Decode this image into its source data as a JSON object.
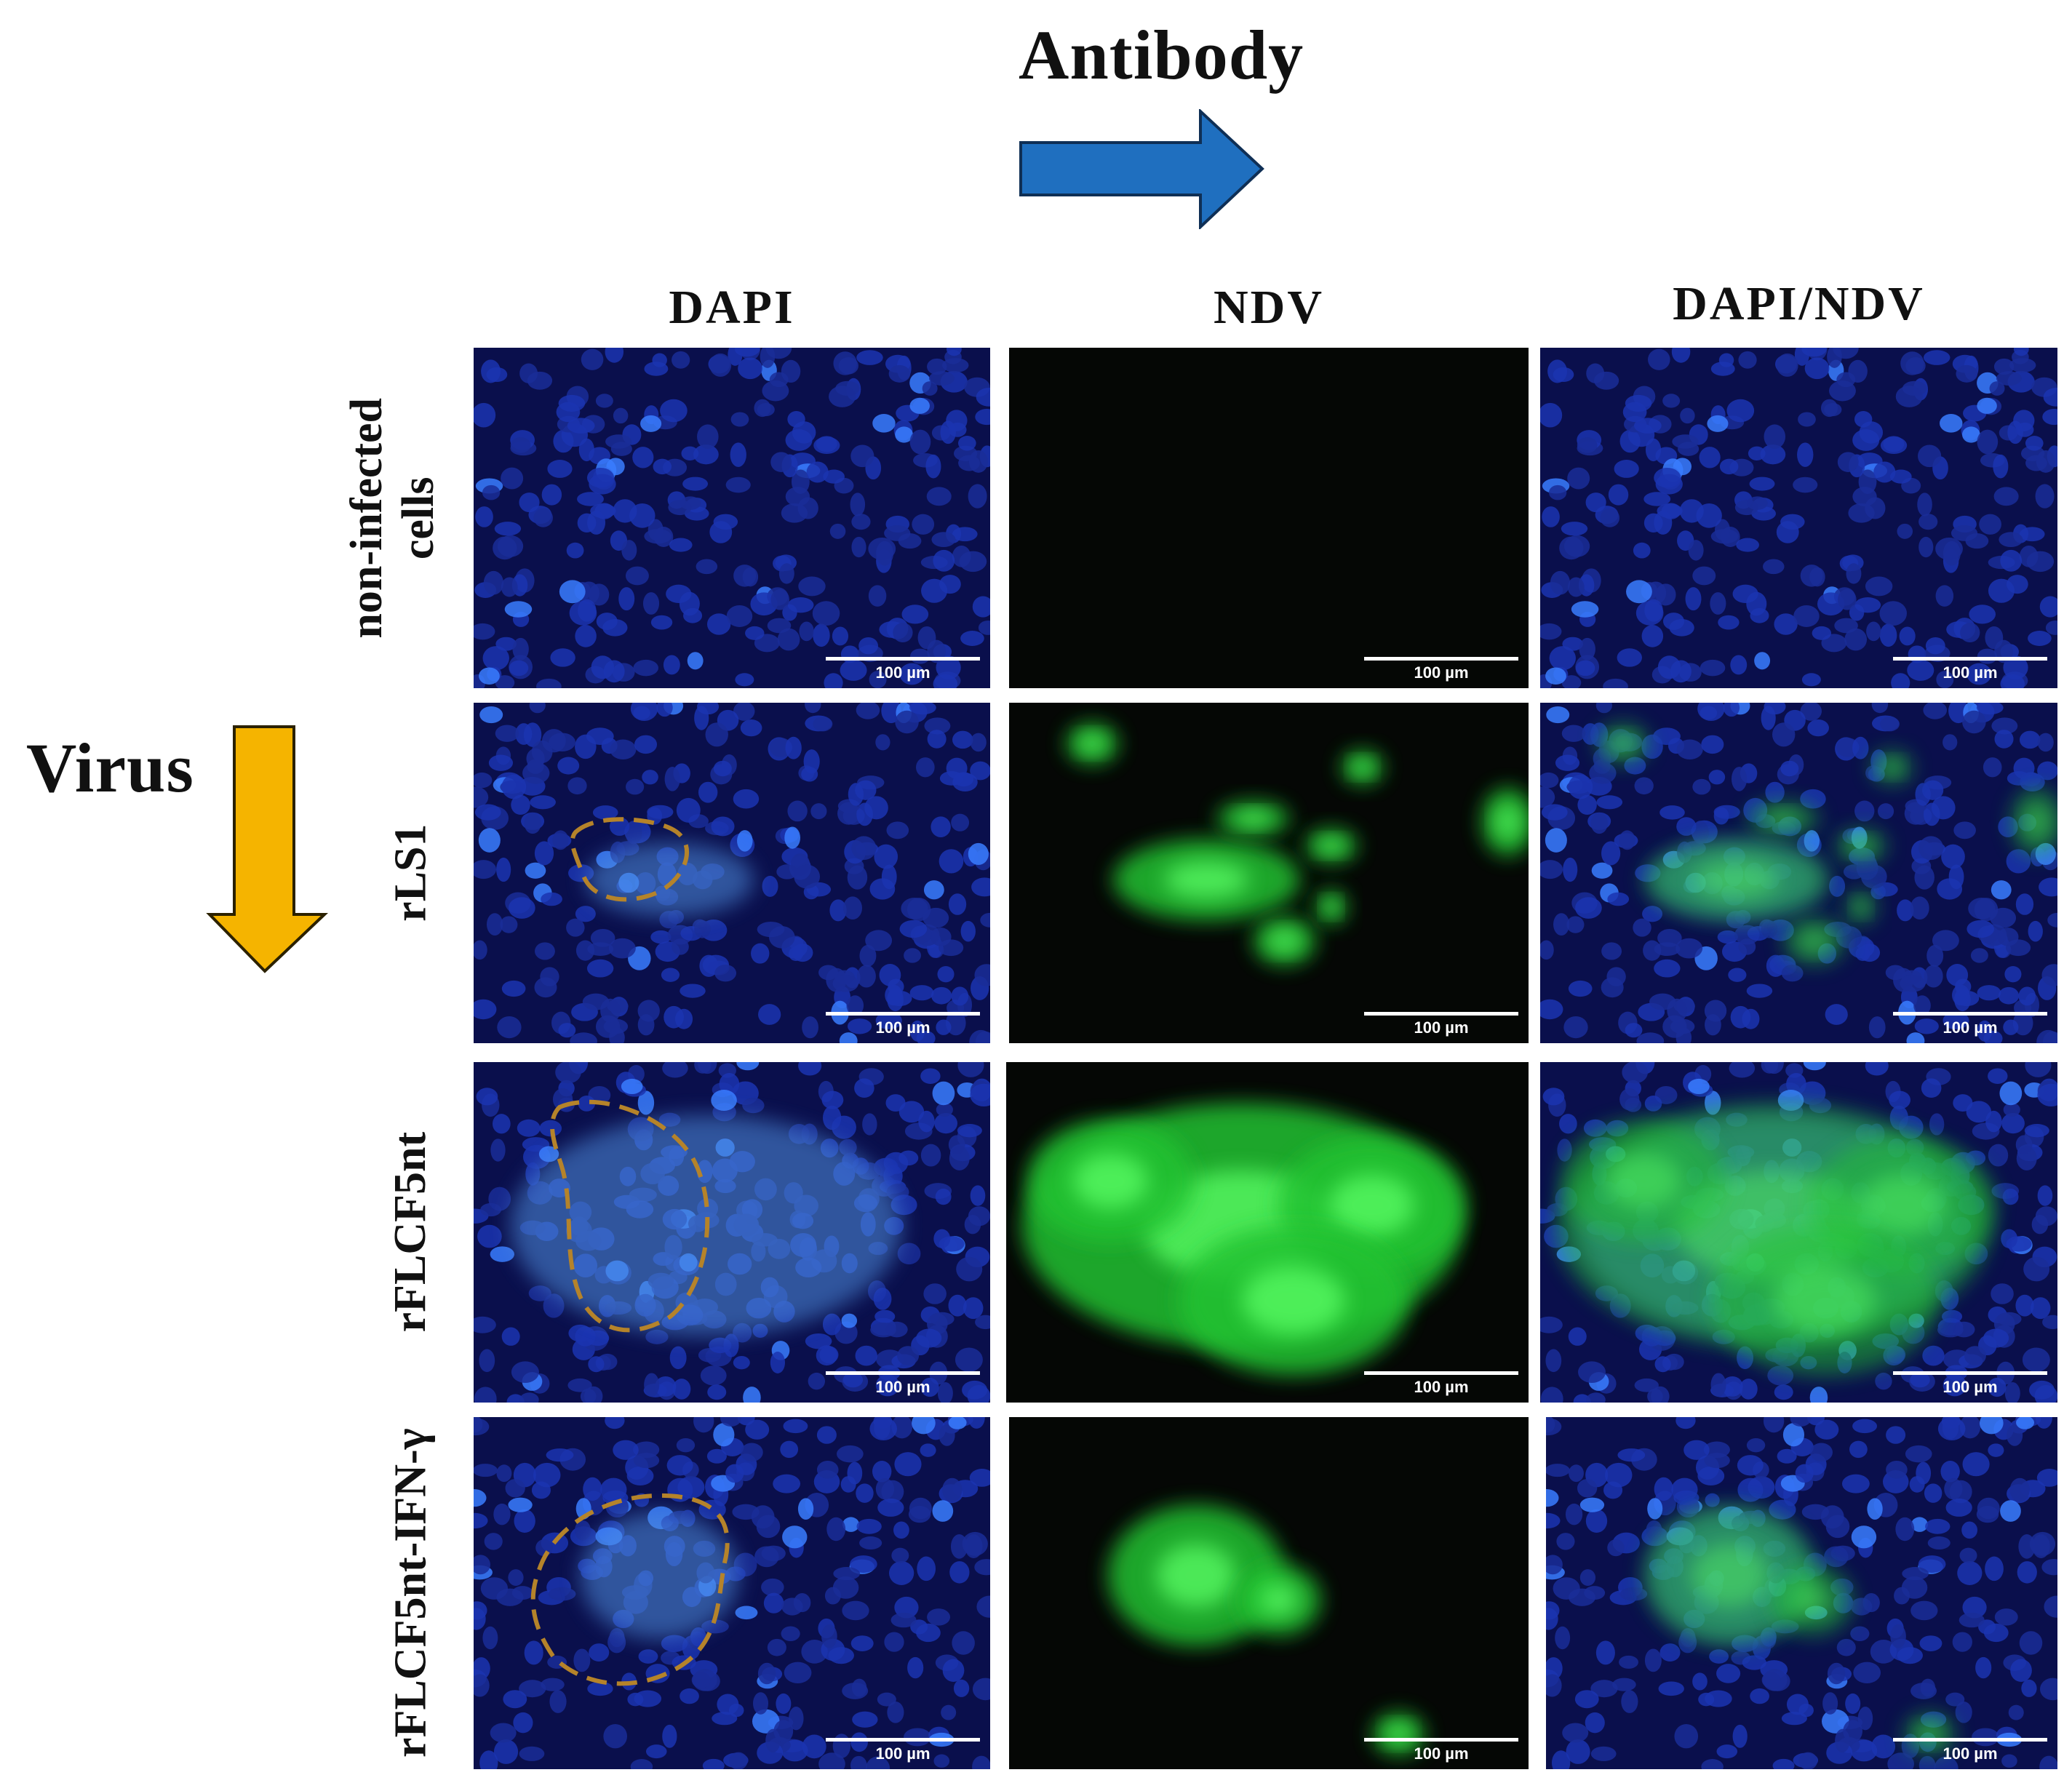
{
  "figure": {
    "antibody_title": "Antibody",
    "virus_title": "Virus",
    "columns": [
      "DAPI",
      "NDV",
      "DAPI/NDV"
    ],
    "rows": [
      [
        "non-infected",
        "cells"
      ],
      [
        "rLS1"
      ],
      [
        "rFLCF5nt"
      ],
      [
        "rFLCF5nt-IFN-γ"
      ]
    ],
    "scale_bar": "100 µm",
    "colors": {
      "antibody_arrow": "#1f6fbf",
      "virus_arrow": "#f5b400",
      "dapi_stain": "#1633a8",
      "ndv_stain": "#2bd43a",
      "outline": "#b5832a"
    },
    "icons": {
      "antibody_arrow": "arrow-right-icon",
      "virus_arrow": "arrow-down-icon"
    }
  }
}
